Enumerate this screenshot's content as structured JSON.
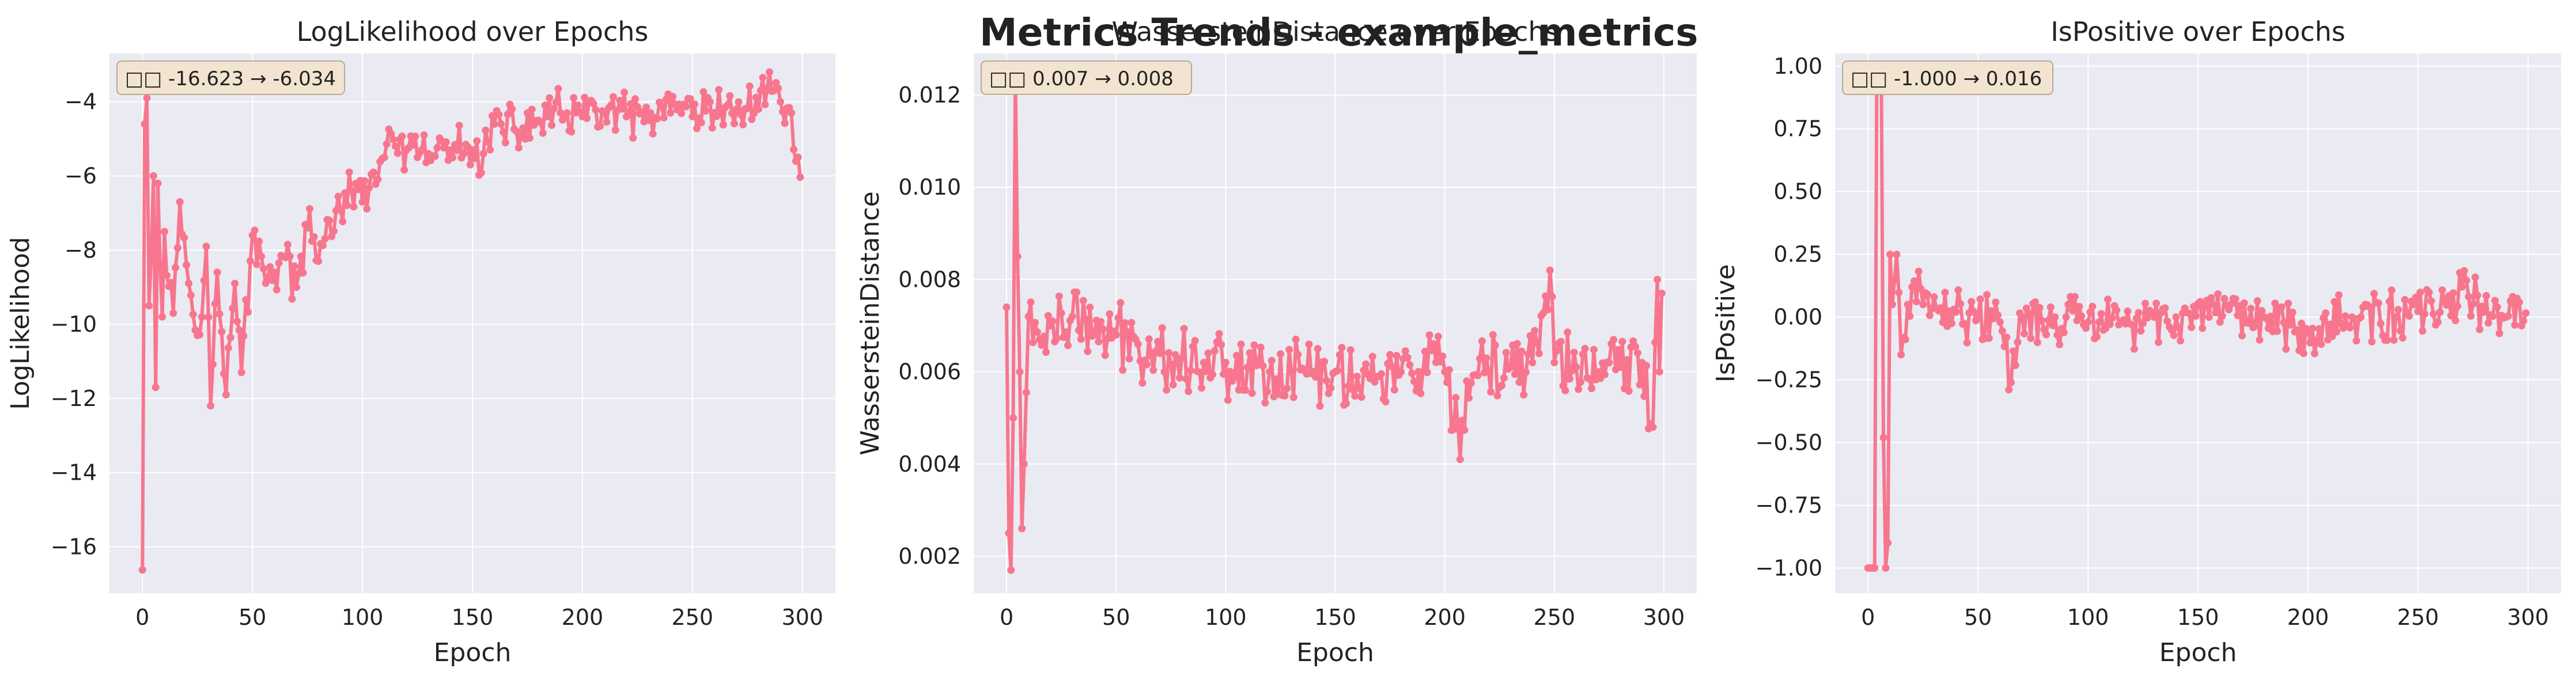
{
  "figure": {
    "suptitle": "Metrics Trends - example_metrics"
  },
  "colors": {
    "plot_bg": "#EAEAF2",
    "grid": "#FFFFFF",
    "line": "#F7768E",
    "text": "#222222",
    "box_bg": "#F2E4D0",
    "box_edge": "#B7AA97"
  },
  "chart_data": [
    {
      "type": "line",
      "title": "LogLikelihood over Epochs",
      "xlabel": "Epoch",
      "ylabel": "LogLikelihood",
      "xlim": [
        -15,
        315
      ],
      "ylim": [
        -17.25,
        -2.7
      ],
      "xticks": [
        0,
        50,
        100,
        150,
        200,
        250,
        300
      ],
      "yticks": [
        -16,
        -14,
        -12,
        -10,
        -8,
        -6,
        -4
      ],
      "ytick_labels": [
        "−16",
        "−14",
        "−12",
        "−10",
        "−8",
        "−6",
        "−4"
      ],
      "grid": true,
      "annotation": "□□ -16.623 → -6.034",
      "series": [
        {
          "n": 300,
          "start": -16.623,
          "end": -6.034,
          "anchors": [
            [
              0,
              -16.623
            ],
            [
              1,
              -4.6
            ],
            [
              2,
              -3.9
            ],
            [
              3,
              -9.5
            ],
            [
              5,
              -6.0
            ],
            [
              6,
              -11.7
            ],
            [
              7,
              -6.2
            ],
            [
              9,
              -9.8
            ],
            [
              10,
              -7.5
            ],
            [
              14,
              -9.7
            ],
            [
              17,
              -6.7
            ],
            [
              20,
              -8.4
            ],
            [
              25,
              -10.3
            ],
            [
              29,
              -7.9
            ],
            [
              31,
              -12.2
            ],
            [
              34,
              -8.6
            ],
            [
              36,
              -10.2
            ],
            [
              38,
              -11.9
            ],
            [
              42,
              -8.9
            ],
            [
              45,
              -11.3
            ],
            [
              50,
              -7.6
            ],
            [
              55,
              -8.5
            ],
            [
              60,
              -8.6
            ],
            [
              65,
              -8.2
            ],
            [
              70,
              -9.0
            ],
            [
              75,
              -7.4
            ],
            [
              80,
              -8.3
            ],
            [
              85,
              -7.2
            ],
            [
              90,
              -6.9
            ],
            [
              95,
              -6.4
            ],
            [
              100,
              -6.7
            ],
            [
              105,
              -5.9
            ],
            [
              110,
              -5.5
            ],
            [
              115,
              -5.2
            ],
            [
              120,
              -5.3
            ],
            [
              125,
              -5.5
            ],
            [
              130,
              -5.4
            ],
            [
              140,
              -5.3
            ],
            [
              150,
              -5.3
            ],
            [
              155,
              -5.4
            ],
            [
              160,
              -4.6
            ],
            [
              170,
              -4.8
            ],
            [
              180,
              -4.5
            ],
            [
              190,
              -4.3
            ],
            [
              200,
              -4.4
            ],
            [
              210,
              -4.3
            ],
            [
              220,
              -4.4
            ],
            [
              230,
              -4.5
            ],
            [
              240,
              -4.3
            ],
            [
              250,
              -4.4
            ],
            [
              260,
              -4.3
            ],
            [
              270,
              -4.2
            ],
            [
              280,
              -4.2
            ],
            [
              285,
              -3.2
            ],
            [
              290,
              -4.0
            ],
            [
              295,
              -4.3
            ],
            [
              297,
              -5.6
            ],
            [
              299,
              -6.034
            ]
          ],
          "noise": 0.55
        }
      ]
    },
    {
      "type": "line",
      "title": "WassersteinDistance over Epochs",
      "xlabel": "Epoch",
      "ylabel": "WassersteinDistance",
      "xlim": [
        -15,
        315
      ],
      "ylim": [
        0.0012,
        0.0129
      ],
      "xticks": [
        0,
        50,
        100,
        150,
        200,
        250,
        300
      ],
      "yticks": [
        0.002,
        0.004,
        0.006,
        0.008,
        0.01,
        0.012
      ],
      "ytick_labels": [
        "0.002",
        "0.004",
        "0.006",
        "0.008",
        "0.010",
        "0.012"
      ],
      "grid": true,
      "annotation": "□□ 0.007 → 0.008",
      "series": [
        {
          "n": 300,
          "start": 0.0074,
          "end": 0.0077,
          "anchors": [
            [
              0,
              0.0074
            ],
            [
              1,
              0.0025
            ],
            [
              2,
              0.0017
            ],
            [
              3,
              0.005
            ],
            [
              4,
              0.0125
            ],
            [
              5,
              0.0085
            ],
            [
              6,
              0.006
            ],
            [
              7,
              0.0026
            ],
            [
              8,
              0.004
            ],
            [
              10,
              0.0072
            ],
            [
              15,
              0.0067
            ],
            [
              20,
              0.007
            ],
            [
              30,
              0.0072
            ],
            [
              40,
              0.0068
            ],
            [
              50,
              0.0068
            ],
            [
              60,
              0.0066
            ],
            [
              70,
              0.0064
            ],
            [
              80,
              0.0063
            ],
            [
              90,
              0.0062
            ],
            [
              100,
              0.0062
            ],
            [
              110,
              0.0061
            ],
            [
              120,
              0.006
            ],
            [
              130,
              0.006
            ],
            [
              140,
              0.006
            ],
            [
              150,
              0.006
            ],
            [
              160,
              0.0059
            ],
            [
              170,
              0.0059
            ],
            [
              180,
              0.006
            ],
            [
              190,
              0.006
            ],
            [
              200,
              0.006
            ],
            [
              207,
              0.0041
            ],
            [
              210,
              0.0058
            ],
            [
              220,
              0.006
            ],
            [
              230,
              0.0061
            ],
            [
              240,
              0.0062
            ],
            [
              248,
              0.0082
            ],
            [
              250,
              0.0062
            ],
            [
              260,
              0.0061
            ],
            [
              270,
              0.006
            ],
            [
              280,
              0.0061
            ],
            [
              290,
              0.0062
            ],
            [
              295,
              0.0048
            ],
            [
              297,
              0.008
            ],
            [
              298,
              0.006
            ],
            [
              299,
              0.0077
            ]
          ],
          "noise": 0.00065
        }
      ]
    },
    {
      "type": "line",
      "title": "IsPositive over Epochs",
      "xlabel": "Epoch",
      "ylabel": "IsPositive",
      "xlim": [
        -15,
        315
      ],
      "ylim": [
        -1.1,
        1.05
      ],
      "xticks": [
        0,
        50,
        100,
        150,
        200,
        250,
        300
      ],
      "yticks": [
        -1.0,
        -0.75,
        -0.5,
        -0.25,
        0.0,
        0.25,
        0.5,
        0.75,
        1.0
      ],
      "ytick_labels": [
        "−1.00",
        "−0.75",
        "−0.50",
        "−0.25",
        "0.00",
        "0.25",
        "0.50",
        "0.75",
        "1.00"
      ],
      "grid": true,
      "annotation": "□□ -1.000 → 0.016",
      "series": [
        {
          "n": 300,
          "start": -1.0,
          "end": 0.016,
          "anchors": [
            [
              0,
              -1.0
            ],
            [
              1,
              -1.0
            ],
            [
              2,
              -1.0
            ],
            [
              3,
              -1.0
            ],
            [
              4,
              1.0
            ],
            [
              5,
              1.0
            ],
            [
              6,
              1.0
            ],
            [
              7,
              -0.48
            ],
            [
              8,
              -1.0
            ],
            [
              9,
              -0.9
            ],
            [
              10,
              0.25
            ],
            [
              11,
              0.05
            ],
            [
              13,
              0.25
            ],
            [
              15,
              -0.15
            ],
            [
              18,
              0.05
            ],
            [
              20,
              0.12
            ],
            [
              25,
              0.05
            ],
            [
              30,
              0.08
            ],
            [
              40,
              0.02
            ],
            [
              50,
              0.0
            ],
            [
              60,
              -0.02
            ],
            [
              65,
              -0.26
            ],
            [
              70,
              0.0
            ],
            [
              80,
              -0.05
            ],
            [
              90,
              0.0
            ],
            [
              100,
              -0.02
            ],
            [
              120,
              -0.03
            ],
            [
              140,
              0.0
            ],
            [
              160,
              -0.02
            ],
            [
              180,
              0.0
            ],
            [
              200,
              -0.05
            ],
            [
              220,
              0.0
            ],
            [
              240,
              0.0
            ],
            [
              260,
              0.02
            ],
            [
              270,
              0.12
            ],
            [
              280,
              0.02
            ],
            [
              290,
              0.0
            ],
            [
              299,
              0.016
            ]
          ],
          "noise": 0.09
        }
      ]
    }
  ]
}
